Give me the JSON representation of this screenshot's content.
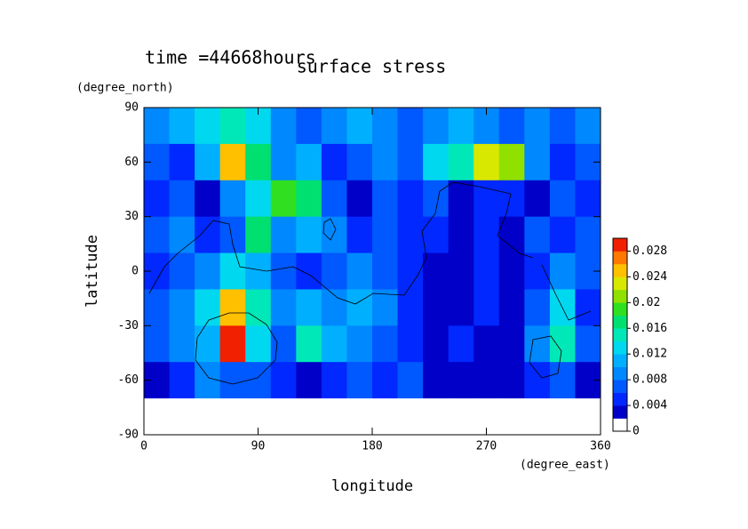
{
  "chart_data": {
    "type": "heatmap",
    "title": "surface stress",
    "subtitle": "time =44668hours",
    "x_label": "longitude",
    "x_unit": "(degree_east)",
    "y_label": "latitude",
    "y_unit": "(degree_north)",
    "x": [
      10,
      30,
      50,
      70,
      90,
      110,
      130,
      150,
      170,
      190,
      210,
      230,
      250,
      270,
      290,
      310,
      330,
      350
    ],
    "y": [
      80,
      60,
      40,
      20,
      0,
      -20,
      -40,
      -60,
      -80
    ],
    "z": [
      [
        0.008,
        0.01,
        0.012,
        0.014,
        0.012,
        0.008,
        0.006,
        0.008,
        0.01,
        0.008,
        0.006,
        0.008,
        0.01,
        0.008,
        0.006,
        0.008,
        0.006,
        0.008
      ],
      [
        0.006,
        0.004,
        0.01,
        0.024,
        0.016,
        0.008,
        0.01,
        0.004,
        0.006,
        0.008,
        0.006,
        0.012,
        0.014,
        0.022,
        0.02,
        0.008,
        0.004,
        0.006
      ],
      [
        0.004,
        0.006,
        0.002,
        0.008,
        0.012,
        0.018,
        0.016,
        0.006,
        0.002,
        0.006,
        0.004,
        0.006,
        0.002,
        0.004,
        0.004,
        0.002,
        0.006,
        0.004
      ],
      [
        0.006,
        0.008,
        0.004,
        0.006,
        0.016,
        0.008,
        0.01,
        0.008,
        0.004,
        0.006,
        0.004,
        0.004,
        0.002,
        0.004,
        0.002,
        0.006,
        0.004,
        0.006
      ],
      [
        0.004,
        0.006,
        0.008,
        0.012,
        0.01,
        0.006,
        0.004,
        0.006,
        0.008,
        0.006,
        0.004,
        0.002,
        0.002,
        0.004,
        0.002,
        0.004,
        0.008,
        0.006
      ],
      [
        0.006,
        0.008,
        0.012,
        0.024,
        0.014,
        0.008,
        0.01,
        0.008,
        0.01,
        0.008,
        0.004,
        0.002,
        0.002,
        0.004,
        0.002,
        0.006,
        0.012,
        0.004
      ],
      [
        0.006,
        0.008,
        0.01,
        0.03,
        0.012,
        0.006,
        0.014,
        0.01,
        0.008,
        0.006,
        0.004,
        0.002,
        0.004,
        0.002,
        0.002,
        0.008,
        0.014,
        0.006
      ],
      [
        0.002,
        0.004,
        0.008,
        0.006,
        0.006,
        0.004,
        0.002,
        0.004,
        0.006,
        0.004,
        0.006,
        0.002,
        0.002,
        0.002,
        0.002,
        0.004,
        0.006,
        0.002
      ],
      [
        0,
        0,
        0,
        0,
        0,
        0,
        0,
        0,
        0,
        0,
        0,
        0,
        0,
        0,
        0,
        0,
        0,
        0
      ]
    ],
    "xlim": [
      0,
      360
    ],
    "xticks": [
      0,
      90,
      180,
      270,
      360
    ],
    "ylim": [
      -90,
      90
    ],
    "yticks": [
      90,
      60,
      30,
      0,
      -30,
      -60,
      -90
    ],
    "colorbar": {
      "lim": [
        0,
        0.03
      ],
      "step": 0.002,
      "ticks": [
        0,
        0.004,
        0.008,
        0.012,
        0.016,
        0.02,
        0.024,
        0.028
      ],
      "colors": [
        "#ffffff",
        "#0000c8",
        "#0028ff",
        "#0058ff",
        "#0088ff",
        "#00b0ff",
        "#00d8f0",
        "#00e8b8",
        "#00e070",
        "#30e020",
        "#90e000",
        "#d8e800",
        "#ffc000",
        "#ff7800",
        "#f02000"
      ]
    }
  }
}
